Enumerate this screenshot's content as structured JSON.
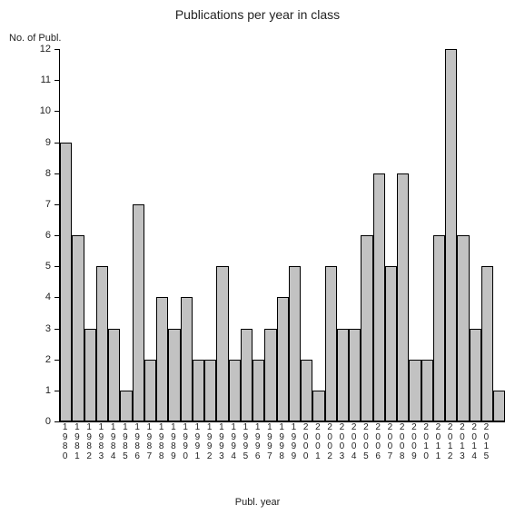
{
  "chart": {
    "type": "bar",
    "title": "Publications per year in class",
    "title_fontsize": 14,
    "ylabel": "No. of Publ.",
    "xlabel": "Publ. year",
    "label_fontsize": 11,
    "ylim": [
      0,
      12
    ],
    "ytick_step": 1,
    "background_color": "#ffffff",
    "bar_color": "#c2c2c2",
    "bar_border_color": "#000000",
    "axis_color": "#000000",
    "text_color": "#222222",
    "categories": [
      "1980",
      "1981",
      "1982",
      "1983",
      "1984",
      "1985",
      "1986",
      "1987",
      "1988",
      "1989",
      "1990",
      "1991",
      "1992",
      "1993",
      "1994",
      "1995",
      "1996",
      "1997",
      "1998",
      "1999",
      "2000",
      "2001",
      "2002",
      "2003",
      "2004",
      "2005",
      "2006",
      "2007",
      "2008",
      "2009",
      "2010",
      "2011",
      "2012",
      "2013",
      "2014",
      "2015"
    ],
    "values": [
      9,
      6,
      3,
      5,
      3,
      1,
      7,
      2,
      4,
      3,
      4,
      2,
      2,
      5,
      2,
      3,
      2,
      3,
      4,
      5,
      2,
      1,
      5,
      3,
      3,
      6,
      8,
      5,
      8,
      2,
      2,
      6,
      12,
      6,
      3,
      5,
      1
    ],
    "extra_categories": [
      ""
    ],
    "tick_label_fontsize": 10
  }
}
